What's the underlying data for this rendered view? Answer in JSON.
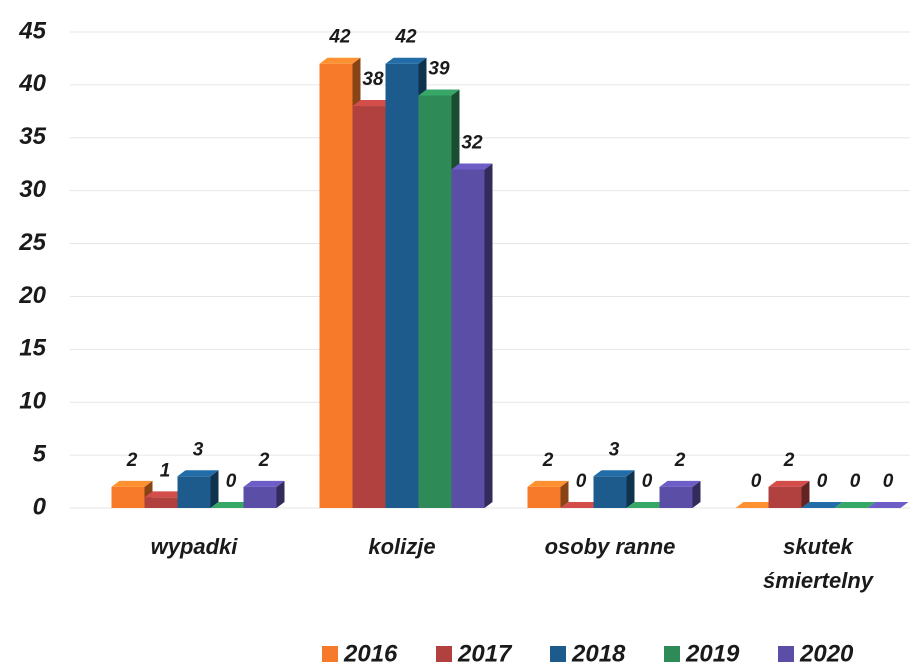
{
  "chart_data": {
    "type": "bar3d",
    "categories": [
      "wypadki",
      "kolizje",
      "osoby ranne",
      "skutek śmiertelny"
    ],
    "series": [
      {
        "name": "2016",
        "color": "#f7792a",
        "values": [
          2,
          42,
          2,
          0
        ]
      },
      {
        "name": "2017",
        "color": "#b0413e",
        "values": [
          1,
          38,
          0,
          2
        ]
      },
      {
        "name": "2018",
        "color": "#1c5b8c",
        "values": [
          3,
          42,
          3,
          0
        ]
      },
      {
        "name": "2019",
        "color": "#2e8b57",
        "values": [
          0,
          39,
          0,
          0
        ]
      },
      {
        "name": "2020",
        "color": "#5b4ea6",
        "values": [
          2,
          32,
          2,
          0
        ]
      }
    ],
    "ylim": [
      0,
      45
    ],
    "yticks": [
      0,
      5,
      10,
      15,
      20,
      25,
      30,
      35,
      40,
      45
    ],
    "grid": true,
    "legend": "bottom"
  }
}
